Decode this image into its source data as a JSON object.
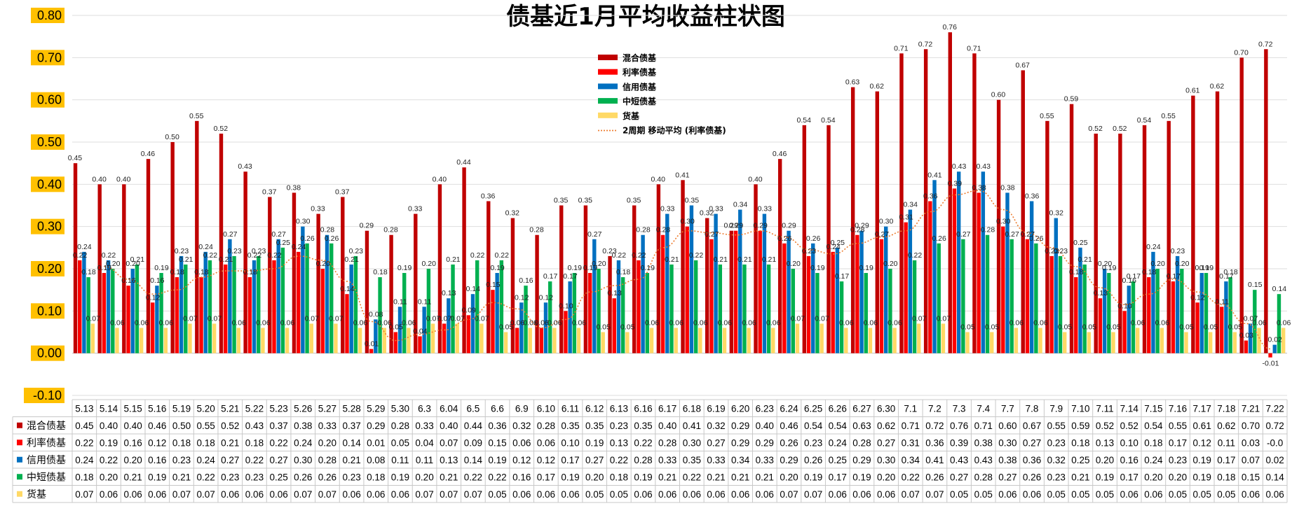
{
  "chart_data": {
    "type": "bar",
    "title": "债基近1月平均收益柱状图",
    "categories": [
      "5.13",
      "5.14",
      "5.15",
      "5.16",
      "5.19",
      "5.20",
      "5.21",
      "5.22",
      "5.23",
      "5.26",
      "5.27",
      "5.28",
      "5.29",
      "5.30",
      "6.3",
      "6.04",
      "6.5",
      "6.6",
      "6.9",
      "6.10",
      "6.11",
      "6.12",
      "6.13",
      "6.16",
      "6.17",
      "6.18",
      "6.19",
      "6.20",
      "6.23",
      "6.24",
      "6.25",
      "6.26",
      "6.27",
      "6.30",
      "7.1",
      "7.2",
      "7.3",
      "7.4",
      "7.7",
      "7.8",
      "7.9",
      "7.10",
      "7.11",
      "7.14",
      "7.15",
      "7.16",
      "7.17",
      "7.18",
      "7.21",
      "7.22"
    ],
    "series": [
      {
        "name": "混合债基",
        "color": "#C00000",
        "values": [
          0.45,
          0.4,
          0.4,
          0.46,
          0.5,
          0.55,
          0.52,
          0.43,
          0.37,
          0.38,
          0.33,
          0.37,
          0.29,
          0.28,
          0.33,
          0.4,
          0.44,
          0.36,
          0.32,
          0.28,
          0.35,
          0.35,
          0.23,
          0.35,
          0.4,
          0.41,
          0.32,
          0.29,
          0.4,
          0.46,
          0.54,
          0.54,
          0.63,
          0.62,
          0.71,
          0.72,
          0.76,
          0.71,
          0.6,
          0.67,
          0.55,
          0.59,
          0.52,
          0.52,
          0.54,
          0.55,
          0.61,
          0.62,
          0.7,
          0.72
        ]
      },
      {
        "name": "利率债基",
        "color": "#FF0000",
        "values": [
          0.22,
          0.19,
          0.16,
          0.12,
          0.18,
          0.18,
          0.21,
          0.18,
          0.22,
          0.24,
          0.2,
          0.14,
          0.01,
          0.05,
          0.04,
          0.07,
          0.09,
          0.15,
          0.06,
          0.06,
          0.1,
          0.19,
          0.13,
          0.22,
          0.28,
          0.3,
          0.27,
          0.29,
          0.29,
          0.26,
          0.23,
          0.24,
          0.28,
          0.27,
          0.31,
          0.36,
          0.39,
          0.38,
          0.3,
          0.27,
          0.23,
          0.18,
          0.13,
          0.1,
          0.18,
          0.17,
          0.12,
          0.11,
          0.03,
          -0.01
        ],
        "table_values": [
          "0.22",
          "0.19",
          "0.16",
          "0.12",
          "0.18",
          "0.18",
          "0.21",
          "0.18",
          "0.22",
          "0.24",
          "0.20",
          "0.14",
          "0.01",
          "0.05",
          "0.04",
          "0.07",
          "0.09",
          "0.15",
          "0.06",
          "0.06",
          "0.10",
          "0.19",
          "0.13",
          "0.22",
          "0.28",
          "0.30",
          "0.27",
          "0.29",
          "0.29",
          "0.26",
          "0.23",
          "0.24",
          "0.28",
          "0.27",
          "0.31",
          "0.36",
          "0.39",
          "0.38",
          "0.30",
          "0.27",
          "0.23",
          "0.18",
          "0.13",
          "0.10",
          "0.18",
          "0.17",
          "0.12",
          "0.11",
          "0.03",
          "-0.0"
        ]
      },
      {
        "name": "信用债基",
        "color": "#0070C0",
        "values": [
          0.24,
          0.22,
          0.2,
          0.16,
          0.23,
          0.24,
          0.27,
          0.22,
          0.27,
          0.3,
          0.28,
          0.21,
          0.08,
          0.11,
          0.11,
          0.13,
          0.14,
          0.19,
          0.12,
          0.12,
          0.17,
          0.27,
          0.22,
          0.28,
          0.33,
          0.35,
          0.33,
          0.34,
          0.33,
          0.29,
          0.26,
          0.25,
          0.29,
          0.3,
          0.34,
          0.41,
          0.43,
          0.43,
          0.38,
          0.36,
          0.32,
          0.25,
          0.2,
          0.16,
          0.24,
          0.23,
          0.19,
          0.17,
          0.07,
          0.02
        ]
      },
      {
        "name": "中短债基",
        "color": "#00B050",
        "values": [
          0.18,
          0.2,
          0.21,
          0.19,
          0.21,
          0.22,
          0.23,
          0.23,
          0.25,
          0.26,
          0.26,
          0.23,
          0.18,
          0.19,
          0.2,
          0.21,
          0.22,
          0.22,
          0.16,
          0.17,
          0.19,
          0.2,
          0.18,
          0.19,
          0.21,
          0.22,
          0.21,
          0.21,
          0.21,
          0.2,
          0.19,
          0.17,
          0.19,
          0.2,
          0.22,
          0.26,
          0.27,
          0.28,
          0.27,
          0.26,
          0.23,
          0.21,
          0.19,
          0.17,
          0.2,
          0.2,
          0.19,
          0.18,
          0.15,
          0.14
        ]
      },
      {
        "name": "货基",
        "color": "#FFD966",
        "values": [
          0.07,
          0.06,
          0.06,
          0.06,
          0.07,
          0.07,
          0.06,
          0.06,
          0.06,
          0.07,
          0.07,
          0.06,
          0.06,
          0.06,
          0.07,
          0.07,
          0.07,
          0.05,
          0.06,
          0.06,
          0.06,
          0.05,
          0.05,
          0.06,
          0.06,
          0.06,
          0.06,
          0.06,
          0.06,
          0.07,
          0.07,
          0.06,
          0.06,
          0.06,
          0.07,
          0.07,
          0.05,
          0.05,
          0.06,
          0.06,
          0.05,
          0.05,
          0.05,
          0.06,
          0.06,
          0.05,
          0.05,
          0.05,
          0.06,
          0.06
        ]
      }
    ],
    "trendline": {
      "name": "2周期 移动平均 (利率债基)",
      "color": "#ED7D31",
      "series": "利率债基",
      "period": 2
    },
    "ylim": [
      -0.1,
      0.8
    ],
    "yticks": [
      "0.80",
      "0.70",
      "0.60",
      "0.50",
      "0.40",
      "0.30",
      "0.20",
      "0.10",
      "0.00",
      "-0.10"
    ],
    "tick_highlight_color": "#FFC000",
    "grid": true,
    "legend": "top-center",
    "data_table": true
  }
}
